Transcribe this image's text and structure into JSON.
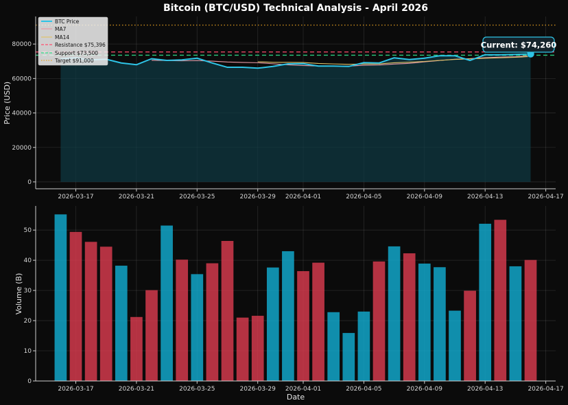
{
  "title": "Bitcoin (BTC/USD) Technical Analysis - April 2026",
  "colors": {
    "background": "#0b0b0b",
    "price": "#2ec4e6",
    "price_fill": "#0e3a44",
    "ma7": "#e89aa6",
    "ma14": "#e0c36a",
    "resistance": "#ff4d6d",
    "support": "#2ee08a",
    "target": "#e6a020",
    "volume_up": "#12a6c9",
    "volume_down": "#d23a4c",
    "annotation_border": "#2ec4e6",
    "annotation_bg": "#14232b"
  },
  "annotation": "Current: $74,260",
  "chart_data": [
    {
      "type": "line",
      "name": "price",
      "title": "Bitcoin (BTC/USD) Technical Analysis - April 2026",
      "xlabel": "",
      "ylabel": "Price (USD)",
      "x_ticks": [
        "2026-03-17",
        "2026-03-21",
        "2026-03-25",
        "2026-03-29",
        "2026-04-01",
        "2026-04-05",
        "2026-04-09",
        "2026-04-13",
        "2026-04-17"
      ],
      "x": [
        "2026-03-16",
        "2026-03-17",
        "2026-03-18",
        "2026-03-19",
        "2026-03-20",
        "2026-03-21",
        "2026-03-22",
        "2026-03-23",
        "2026-03-24",
        "2026-03-25",
        "2026-03-26",
        "2026-03-27",
        "2026-03-28",
        "2026-03-29",
        "2026-03-30",
        "2026-03-31",
        "2026-04-01",
        "2026-04-02",
        "2026-04-03",
        "2026-04-04",
        "2026-04-05",
        "2026-04-06",
        "2026-04-07",
        "2026-04-08",
        "2026-04-09",
        "2026-04-10",
        "2026-04-11",
        "2026-04-12",
        "2026-04-13",
        "2026-04-14",
        "2026-04-15",
        "2026-04-16"
      ],
      "y_ticks": [
        0,
        20000,
        40000,
        60000,
        80000
      ],
      "ylim": [
        -4000,
        96000
      ],
      "grid": true,
      "legend_position": "top-left",
      "series": [
        {
          "name": "BTC Price",
          "values": [
            71500,
            72000,
            70800,
            71200,
            69000,
            68000,
            71500,
            70500,
            70800,
            71800,
            69000,
            66500,
            66500,
            66000,
            67000,
            68500,
            68600,
            67200,
            67200,
            67000,
            69200,
            69000,
            72000,
            71000,
            71800,
            73200,
            73200,
            70500,
            73800,
            73800,
            74000,
            74260
          ]
        },
        {
          "name": "MA7",
          "values": [
            null,
            null,
            null,
            null,
            null,
            null,
            70571,
            70429,
            70257,
            70400,
            70086,
            69586,
            69343,
            69157,
            68557,
            67929,
            67557,
            67243,
            67257,
            67200,
            67671,
            67857,
            68371,
            68800,
            69671,
            70457,
            71200,
            71529,
            72086,
            72400,
            72614,
            73337
          ]
        },
        {
          "name": "MA14",
          "values": [
            null,
            null,
            null,
            null,
            null,
            null,
            null,
            null,
            null,
            null,
            null,
            null,
            null,
            69757,
            69364,
            69400,
            69300,
            68729,
            68457,
            68229,
            68429,
            68479,
            69114,
            69471,
            69900,
            70543,
            71079,
            71386,
            71786,
            72000,
            72300,
            72740
          ]
        }
      ],
      "reference_lines": [
        {
          "name": "Resistance $75,396",
          "value": 75396,
          "style": "dashed"
        },
        {
          "name": "Support $73,500",
          "value": 73500,
          "style": "dashed"
        },
        {
          "name": "Target $91,000",
          "value": 91000,
          "style": "dotted"
        }
      ],
      "current_point": {
        "x": "2026-04-16",
        "value": 74260
      }
    },
    {
      "type": "bar",
      "name": "volume",
      "xlabel": "Date",
      "ylabel": "Volume (B)",
      "x_ticks": [
        "2026-03-17",
        "2026-03-21",
        "2026-03-25",
        "2026-03-29",
        "2026-04-01",
        "2026-04-05",
        "2026-04-09",
        "2026-04-13",
        "2026-04-17"
      ],
      "categories": [
        "2026-03-16",
        "2026-03-17",
        "2026-03-18",
        "2026-03-19",
        "2026-03-20",
        "2026-03-21",
        "2026-03-22",
        "2026-03-23",
        "2026-03-24",
        "2026-03-25",
        "2026-03-26",
        "2026-03-27",
        "2026-03-28",
        "2026-03-29",
        "2026-03-30",
        "2026-03-31",
        "2026-04-01",
        "2026-04-02",
        "2026-04-03",
        "2026-04-04",
        "2026-04-05",
        "2026-04-06",
        "2026-04-07",
        "2026-04-08",
        "2026-04-09",
        "2026-04-10",
        "2026-04-11",
        "2026-04-12",
        "2026-04-13",
        "2026-04-14",
        "2026-04-15",
        "2026-04-16"
      ],
      "values": [
        55.2,
        49.4,
        46.1,
        44.5,
        38.2,
        21.2,
        30.1,
        51.5,
        40.2,
        35.4,
        39.0,
        46.4,
        21.0,
        21.6,
        37.6,
        43.0,
        36.4,
        39.2,
        22.8,
        15.9,
        23.0,
        39.6,
        44.6,
        42.3,
        38.9,
        37.7,
        23.3,
        29.9,
        52.1,
        53.4,
        38.0,
        40.1
      ],
      "direction": [
        "up",
        "down",
        "down",
        "down",
        "up",
        "down",
        "down",
        "up",
        "down",
        "up",
        "down",
        "down",
        "down",
        "down",
        "up",
        "up",
        "down",
        "down",
        "up",
        "up",
        "up",
        "down",
        "up",
        "down",
        "up",
        "up",
        "up",
        "down",
        "up",
        "down",
        "up",
        "down"
      ],
      "y_ticks": [
        0,
        10,
        20,
        30,
        40,
        50
      ],
      "ylim": [
        0,
        58
      ],
      "grid": true
    }
  ]
}
